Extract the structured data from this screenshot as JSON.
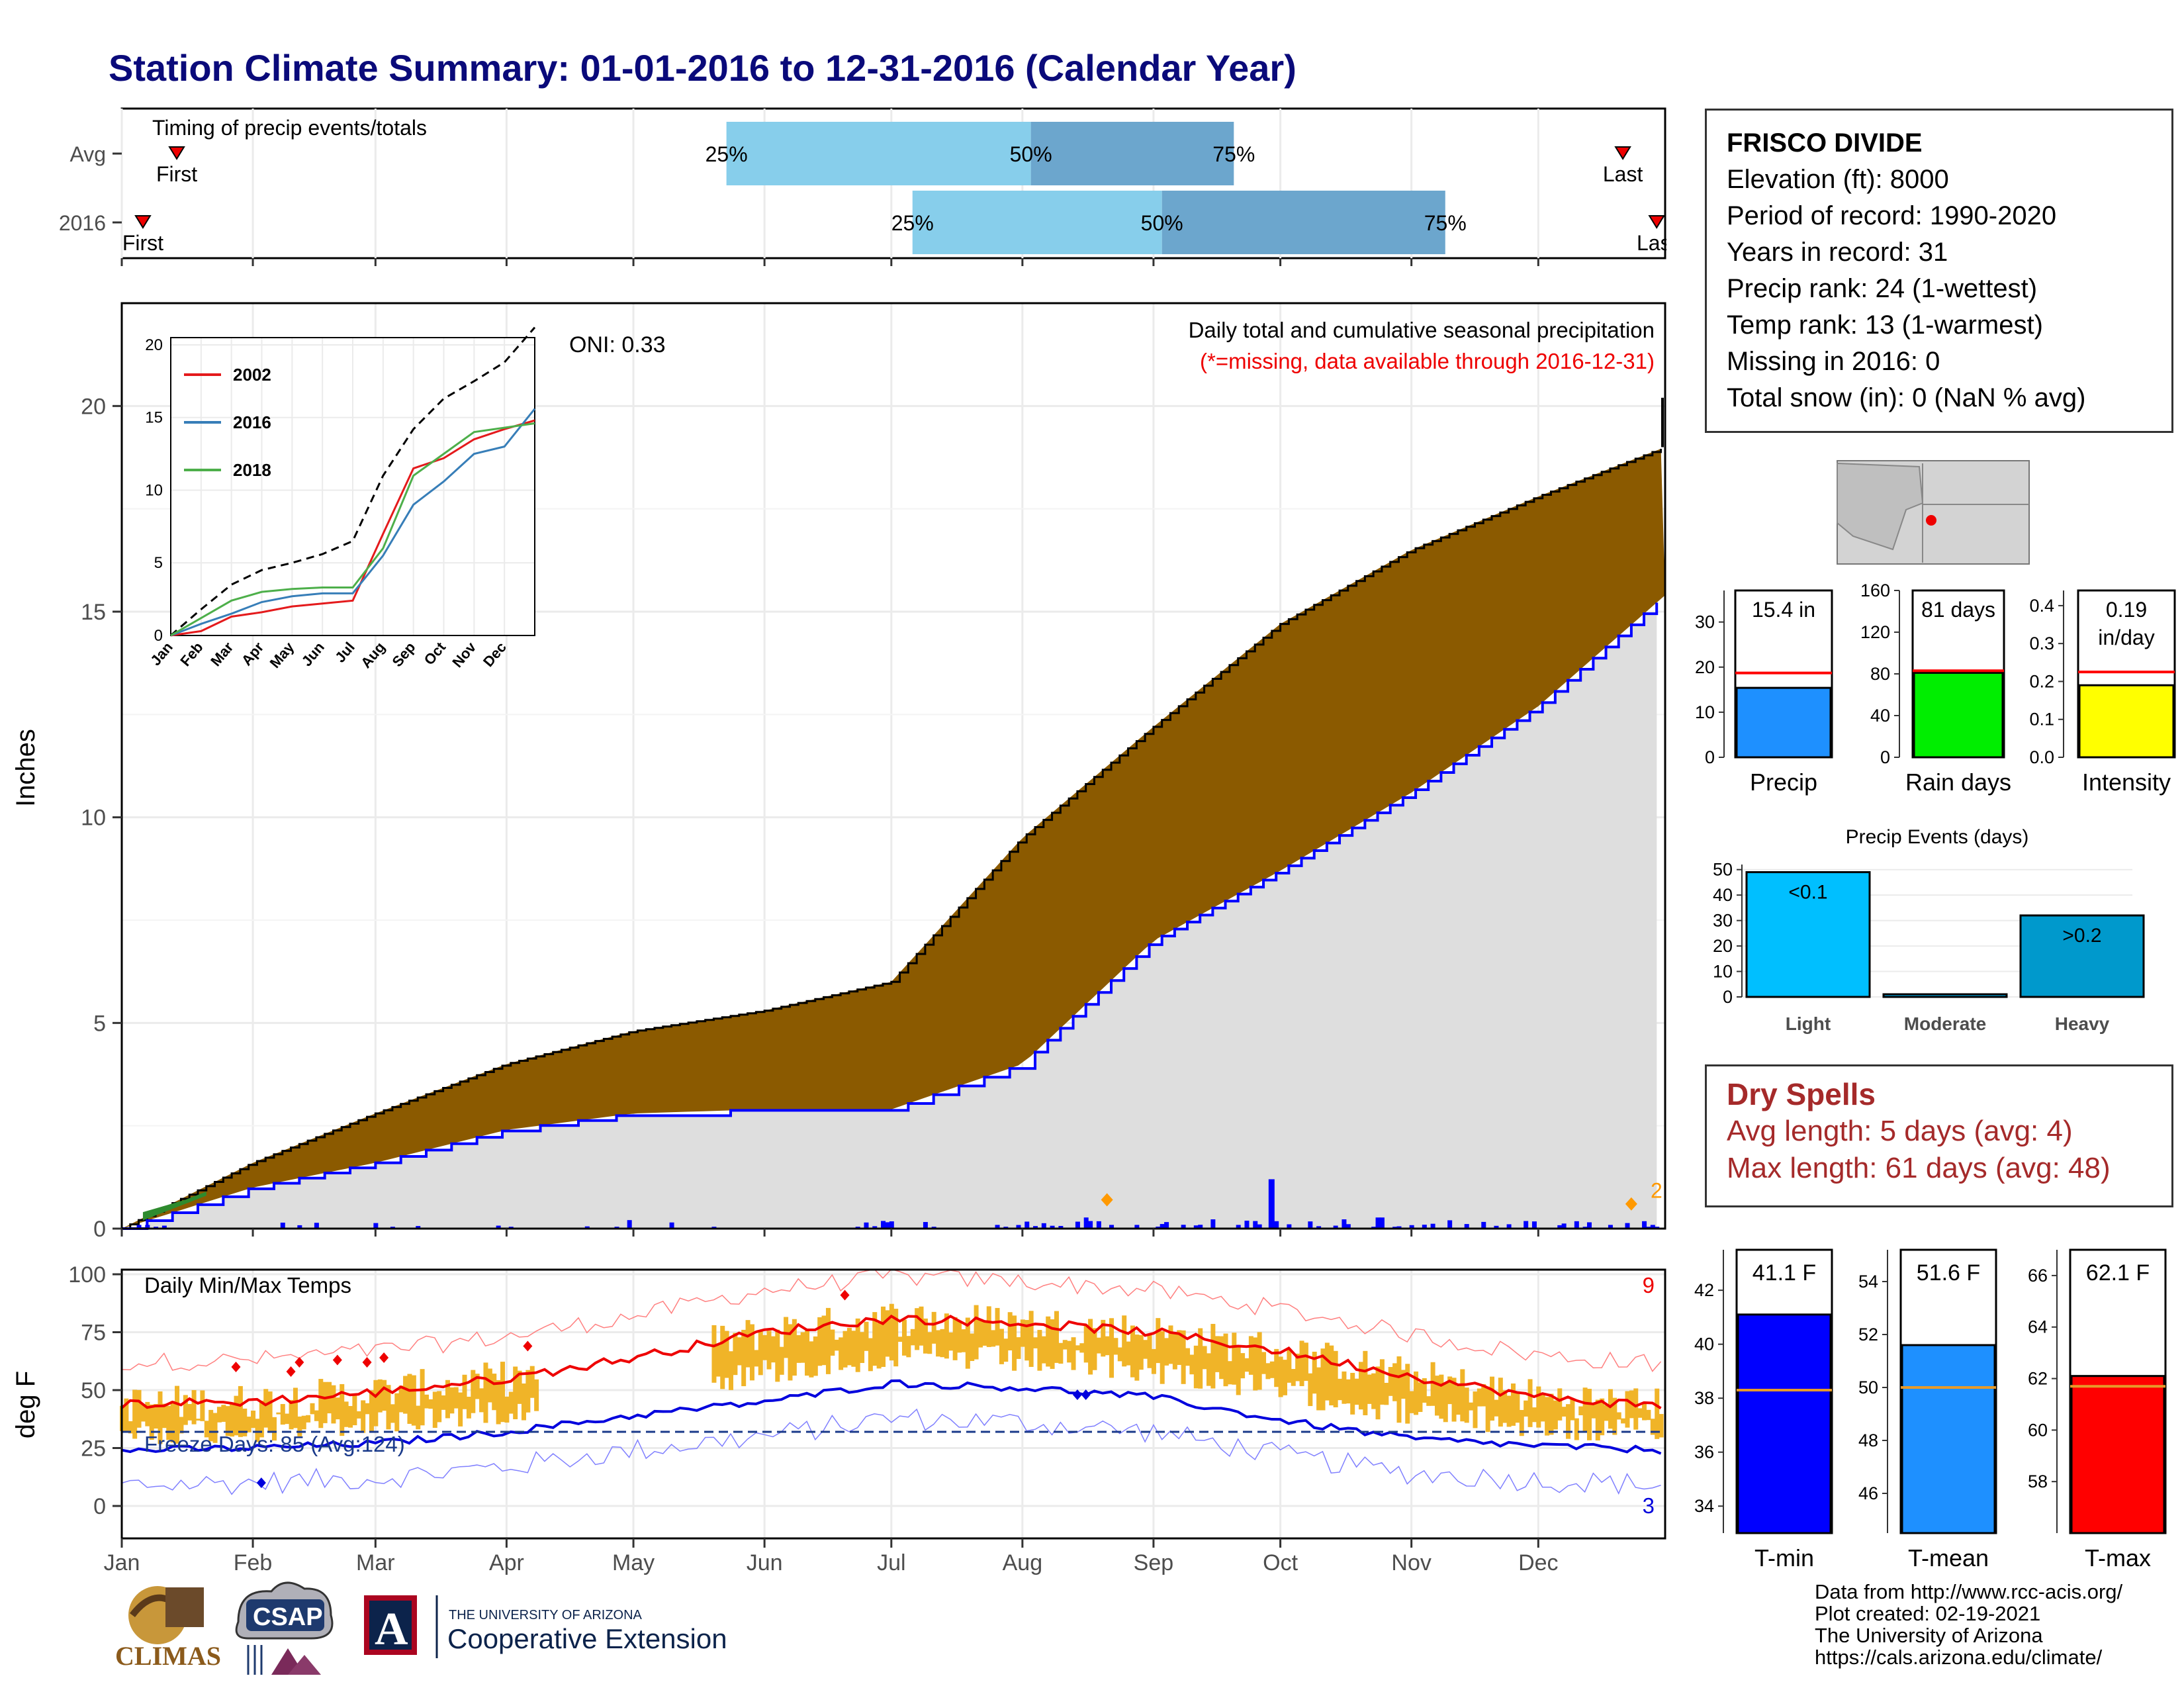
{
  "title": "Station Climate Summary: 01-01-2016 to 12-31-2016 (Calendar Year)",
  "months": [
    "Jan",
    "Feb",
    "Mar",
    "Apr",
    "May",
    "Jun",
    "Jul",
    "Aug",
    "Sep",
    "Oct",
    "Nov",
    "Dec"
  ],
  "timing_panel": {
    "label": "Timing of precip events/totals",
    "rows": [
      {
        "name": "Avg",
        "first_label": "First",
        "last_label": "Last",
        "first_day": 13,
        "last_day": 355,
        "p25_label": "25%",
        "p50_label": "50%",
        "p75_label": "75%",
        "p25": 143,
        "p50": 215,
        "p75": 263
      },
      {
        "name": "2016",
        "first_label": "First",
        "last_label": "Last",
        "first_day": 5,
        "last_day": 363,
        "p25_label": "25%",
        "p50_label": "50%",
        "p75_label": "75%",
        "p25": 187,
        "p50": 246,
        "p75": 313
      }
    ]
  },
  "precip_panel": {
    "ylabel": "Inches",
    "oni": "ONI: 0.33",
    "subtitle": "Daily total and cumulative seasonal precipitation",
    "missing_note": "(*=missing, data available through 2016-12-31)",
    "yticks": [
      "0",
      "5",
      "10",
      "15",
      "20"
    ],
    "marker_label": "2",
    "inset": {
      "yticks": [
        "0",
        "5",
        "10",
        "15",
        "20"
      ],
      "legend": [
        {
          "name": "2002",
          "color": "#e41a1c"
        },
        {
          "name": "2016",
          "color": "#377eb8"
        },
        {
          "name": "2018",
          "color": "#4daf4a"
        }
      ]
    }
  },
  "temp_panel": {
    "ylabel": "deg F",
    "label": "Daily Min/Max Temps",
    "freeze_label": "Freeze Days: 85 (Avg:124)",
    "record_high_count": "9",
    "record_low_count": "3",
    "yticks": [
      "0",
      "25",
      "50",
      "75",
      "100"
    ]
  },
  "station": {
    "name": "FRISCO DIVIDE",
    "lines": [
      "Elevation (ft): 8000",
      "Period of record: 1990-2020",
      "Years in record: 31",
      "Precip rank: 24 (1-wettest)",
      "Temp rank: 13 (1-warmest)",
      "Missing in 2016: 0",
      "Total snow (in): 0 (NaN % avg)"
    ]
  },
  "stat_bars_top": [
    {
      "name": "Precip",
      "label": "15.4 in",
      "value": 15.4,
      "avg": 18.7,
      "ymax": 37,
      "ticks": [
        "0",
        "10",
        "20",
        "30"
      ],
      "color": "#1e90ff"
    },
    {
      "name": "Rain days",
      "label": "81 days",
      "value": 81,
      "avg": 83,
      "ymax": 160,
      "ticks": [
        "0",
        "40",
        "80",
        "120",
        "160"
      ],
      "color": "#00ee00"
    },
    {
      "name": "Intensity",
      "label_line1": "0.19",
      "label_line2": "in/day",
      "value": 0.19,
      "avg": 0.225,
      "ymax": 0.44,
      "ticks": [
        "0.0",
        "0.1",
        "0.2",
        "0.3",
        "0.4"
      ],
      "color": "#ffff00"
    }
  ],
  "precip_events": {
    "title": "Precip Events (days)",
    "yticks": [
      "0",
      "10",
      "20",
      "30",
      "40",
      "50"
    ],
    "bars": [
      {
        "name": "Light",
        "label": "<0.1",
        "value": 49,
        "color": "#00bfff"
      },
      {
        "name": "Moderate",
        "label": "",
        "value": 0,
        "color": "#00bfff"
      },
      {
        "name": "Heavy",
        "label": ">0.2",
        "value": 32,
        "color": "#0099cc"
      }
    ]
  },
  "dry_spells": {
    "title": "Dry Spells",
    "avg_line": "Avg length: 5 days (avg: 4)",
    "max_line": "Max length: 61 days (avg: 48)"
  },
  "stat_bars_temp": [
    {
      "name": "T-min",
      "label": "41.1 F",
      "value": 41.1,
      "avg": 38.3,
      "ymin": 33,
      "ymax": 43.5,
      "ticks": [
        "34",
        "36",
        "38",
        "40",
        "42"
      ],
      "color": "#0000ff"
    },
    {
      "name": "T-mean",
      "label": "51.6 F",
      "value": 51.6,
      "avg": 50,
      "ymin": 44.5,
      "ymax": 55.2,
      "ticks": [
        "46",
        "48",
        "50",
        "52",
        "54"
      ],
      "color": "#1e90ff"
    },
    {
      "name": "T-max",
      "label": "62.1 F",
      "value": 62.1,
      "avg": 61.7,
      "ymin": 56,
      "ymax": 67,
      "ticks": [
        "58",
        "60",
        "62",
        "64",
        "66"
      ],
      "color": "#ff0000"
    }
  ],
  "credits": [
    "Data from http://www.rcc-acis.org/",
    "Plot created: 02-19-2021",
    "The University of Arizona",
    "https://cals.arizona.edu/climate/"
  ],
  "logos": {
    "climas": "CLIMAS",
    "csap": "CSAP",
    "ua_small": "THE UNIVERSITY OF ARIZONA",
    "ua_big": "Cooperative Extension",
    "ua_mark": "A"
  },
  "chart_data": [
    {
      "type": "bar",
      "title": "Timing of precip events/totals",
      "categories": [
        "Avg",
        "2016"
      ],
      "x_units": "day of year",
      "series": [
        {
          "name": "25%",
          "values": [
            143,
            187
          ]
        },
        {
          "name": "50%",
          "values": [
            215,
            246
          ]
        },
        {
          "name": "75%",
          "values": [
            263,
            313
          ]
        }
      ]
    },
    {
      "type": "area",
      "title": "Daily total and cumulative seasonal precipitation",
      "ylabel": "Inches",
      "ylim": [
        0,
        22.5
      ],
      "x": [
        "Jan",
        "Feb",
        "Mar",
        "Apr",
        "May",
        "Jun",
        "Jul",
        "Aug",
        "Sep",
        "Oct",
        "Nov",
        "Dec",
        "Dec-31"
      ],
      "series": [
        {
          "name": "Avg cumulative",
          "values": [
            0,
            1.6,
            2.8,
            4.0,
            4.8,
            5.3,
            6.0,
            9.5,
            12.2,
            14.7,
            16.5,
            17.8,
            19.0
          ]
        },
        {
          "name": "2016 cumulative",
          "values": [
            0,
            1.0,
            1.6,
            2.4,
            2.8,
            2.9,
            2.9,
            4.0,
            7.0,
            8.7,
            10.6,
            12.7,
            15.4
          ]
        }
      ]
    },
    {
      "type": "line",
      "title": "Daily Min/Max Temps",
      "ylabel": "deg F",
      "ylim": [
        -10,
        100
      ],
      "x": [
        "Jan",
        "Feb",
        "Mar",
        "Apr",
        "May",
        "Jun",
        "Jul",
        "Aug",
        "Sep",
        "Oct",
        "Nov",
        "Dec",
        "Dec-31"
      ],
      "series": [
        {
          "name": "Avg max",
          "values": [
            44,
            45,
            49,
            55,
            64,
            75,
            81,
            79,
            75,
            67,
            56,
            47,
            43
          ]
        },
        {
          "name": "Avg min",
          "values": [
            24,
            25,
            27,
            32,
            39,
            45,
            53,
            51,
            47,
            37,
            29,
            26,
            24
          ]
        }
      ]
    },
    {
      "type": "bar",
      "title": "Precip Events (days)",
      "categories": [
        "Light",
        "Moderate",
        "Heavy"
      ],
      "values": [
        49,
        0,
        32
      ]
    },
    {
      "type": "bar",
      "categories": [
        "Precip",
        "Rain days",
        "Intensity"
      ],
      "values": [
        15.4,
        81,
        0.19
      ]
    },
    {
      "type": "bar",
      "categories": [
        "T-min",
        "T-mean",
        "T-max"
      ],
      "values": [
        41.1,
        51.6,
        62.1
      ]
    }
  ]
}
